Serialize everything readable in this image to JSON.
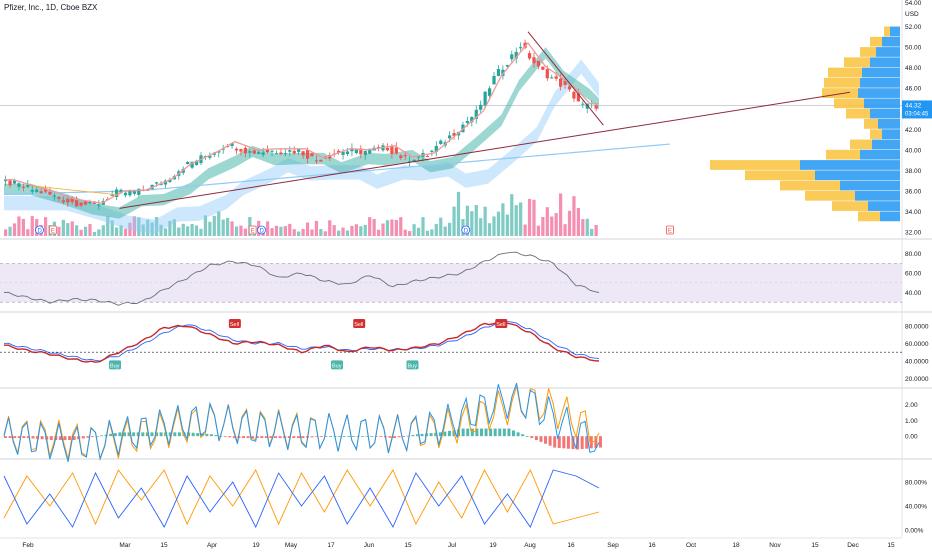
{
  "header": {
    "symbol_title": "Pfizer, Inc., 1D, Cboe BZX",
    "currency": "USD"
  },
  "price_badge": {
    "value": "44.32",
    "countdown": "03:04:45"
  },
  "colors": {
    "up": "#26a69a",
    "down": "#ef5350",
    "volume_up": "#80cbc4",
    "volume_down": "#f48fb1",
    "ema_fast": "#ef9a9a",
    "ribbon_green": "#4db6ac",
    "ribbon_blue": "#90caf9",
    "trendline": "#8e2a3c",
    "vp_blue": "#2196f3",
    "vp_yellow": "#f9c23c",
    "rsi_line": "#6b6f7c",
    "rsi_band": "#ede7f6",
    "stoch_k": "#c62828",
    "stoch_d": "#2962ff",
    "macd_line": "#2196f3",
    "macd_signal": "#ff9800",
    "hist_pos": "#26a69a",
    "hist_neg": "#ef5350",
    "osc_blue": "#2962ff",
    "osc_orange": "#ff9800"
  },
  "icons": {
    "dividend_marker": "dividend-icon",
    "earnings_marker": "earnings-icon"
  },
  "chart_data": {
    "type": "line",
    "title": "Pfizer, Inc., 1D, Cboe BZX",
    "x_tick_labels": [
      "Feb",
      "Mar",
      "15",
      "Apr",
      "19",
      "May",
      "17",
      "Jun",
      "15",
      "Jul",
      "19",
      "Aug",
      "16",
      "Sep",
      "16",
      "Oct",
      "18",
      "Nov",
      "15",
      "Dec",
      "15"
    ],
    "price_axis": {
      "ticks": [
        "52.00",
        "50.00",
        "48.00",
        "46.00",
        "44.00",
        "42.00",
        "40.00",
        "38.00",
        "36.00",
        "34.00",
        "32.00"
      ],
      "ylim": [
        32,
        54
      ],
      "top_label": "54.00"
    },
    "price_series": {
      "name": "Close",
      "x": [
        0,
        8,
        14,
        20,
        25,
        30,
        36,
        40,
        46,
        50,
        55,
        60,
        66,
        70,
        76,
        80,
        86,
        90,
        95,
        100,
        106,
        110,
        116,
        120,
        126,
        130,
        134
      ],
      "values": [
        36.9,
        35.9,
        35.0,
        34.6,
        35.8,
        35.9,
        37.0,
        38.4,
        39.6,
        40.6,
        39.8,
        39.9,
        39.9,
        39.0,
        39.9,
        39.8,
        40.2,
        39.1,
        39.5,
        41.3,
        43.6,
        47.0,
        50.2,
        47.9,
        46.1,
        44.3,
        44.3
      ]
    },
    "annotation_markers": [
      {
        "label": "D",
        "x": 8
      },
      {
        "label": "E",
        "x": 11
      },
      {
        "label": "E",
        "x": 56
      },
      {
        "label": "D",
        "x": 58
      },
      {
        "label": "D",
        "x": 104
      },
      {
        "label": "E",
        "x": 150
      }
    ],
    "volume_profile": {
      "price_levels": [
        51.5,
        50.5,
        49.5,
        48.5,
        47.5,
        46.5,
        45.5,
        44.5,
        43.5,
        42.5,
        41.5,
        40.5,
        39.5,
        38.5,
        37.5,
        36.5,
        35.5,
        34.5,
        33.5
      ],
      "up_volume": [
        10,
        18,
        24,
        30,
        38,
        40,
        42,
        36,
        30,
        22,
        18,
        28,
        40,
        100,
        85,
        60,
        45,
        32,
        20
      ],
      "down_volume": [
        6,
        12,
        16,
        26,
        34,
        36,
        36,
        30,
        24,
        14,
        12,
        22,
        34,
        90,
        70,
        60,
        50,
        36,
        22
      ]
    },
    "rsi": {
      "axis_ticks": [
        "80.00",
        "60.00",
        "40.00"
      ],
      "ylim": [
        25,
        90
      ],
      "bands": [
        70,
        30
      ],
      "values": [
        40,
        35,
        30,
        33,
        32,
        28,
        30,
        43,
        55,
        68,
        72,
        68,
        55,
        60,
        52,
        48,
        58,
        46,
        52,
        56,
        60,
        72,
        82,
        78,
        70,
        48,
        40
      ]
    },
    "stoch_rsi": {
      "axis_ticks": [
        "80.0000",
        "60.0000",
        "40.0000",
        "20.0000"
      ],
      "ylim": [
        15,
        90
      ],
      "k": [
        58,
        52,
        48,
        42,
        38,
        50,
        62,
        78,
        80,
        70,
        60,
        62,
        58,
        50,
        58,
        50,
        56,
        52,
        55,
        60,
        70,
        82,
        84,
        72,
        55,
        45,
        40
      ],
      "d": [
        60,
        55,
        50,
        45,
        40,
        46,
        58,
        72,
        82,
        74,
        64,
        60,
        60,
        54,
        56,
        52,
        54,
        53,
        54,
        58,
        66,
        78,
        86,
        76,
        60,
        48,
        43
      ],
      "signals": [
        {
          "label": "Buy",
          "x": 25
        },
        {
          "label": "Sell",
          "x": 52
        },
        {
          "label": "Buy",
          "x": 75
        },
        {
          "label": "Sell",
          "x": 80
        },
        {
          "label": "Buy",
          "x": 92
        },
        {
          "label": "Sell",
          "x": 112
        }
      ]
    },
    "macd": {
      "axis_ticks": [
        "2.00",
        "1.00",
        "0.00"
      ],
      "ylim": [
        -1,
        2.6
      ],
      "macd": [
        0.0,
        -0.1,
        -0.3,
        -0.5,
        -0.4,
        0.0,
        0.3,
        0.6,
        0.9,
        1.0,
        0.7,
        0.5,
        0.4,
        0.2,
        0.3,
        0.2,
        0.2,
        0.1,
        0.3,
        0.6,
        1.2,
        1.8,
        2.3,
        2.1,
        1.2,
        0.3,
        -0.4
      ],
      "signal": [
        0.1,
        0.0,
        -0.1,
        -0.3,
        -0.4,
        -0.2,
        0.1,
        0.4,
        0.7,
        0.9,
        0.8,
        0.6,
        0.5,
        0.3,
        0.3,
        0.2,
        0.2,
        0.2,
        0.2,
        0.4,
        0.8,
        1.4,
        1.9,
        2.2,
        1.8,
        1.0,
        0.2
      ]
    },
    "oscillator": {
      "axis_ticks": [
        "80.00%",
        "40.00%",
        "0.00%"
      ],
      "ylim": [
        -5,
        110
      ],
      "blue": [
        90,
        10,
        60,
        5,
        95,
        20,
        70,
        5,
        90,
        30,
        80,
        5,
        95,
        40,
        90,
        10,
        70,
        5,
        95,
        40,
        90,
        10,
        60,
        5,
        100,
        90,
        70
      ],
      "orange": [
        20,
        90,
        40,
        95,
        10,
        100,
        50,
        100,
        10,
        90,
        40,
        100,
        10,
        95,
        30,
        100,
        40,
        100,
        10,
        80,
        20,
        100,
        30,
        100,
        10,
        20,
        30
      ]
    }
  }
}
